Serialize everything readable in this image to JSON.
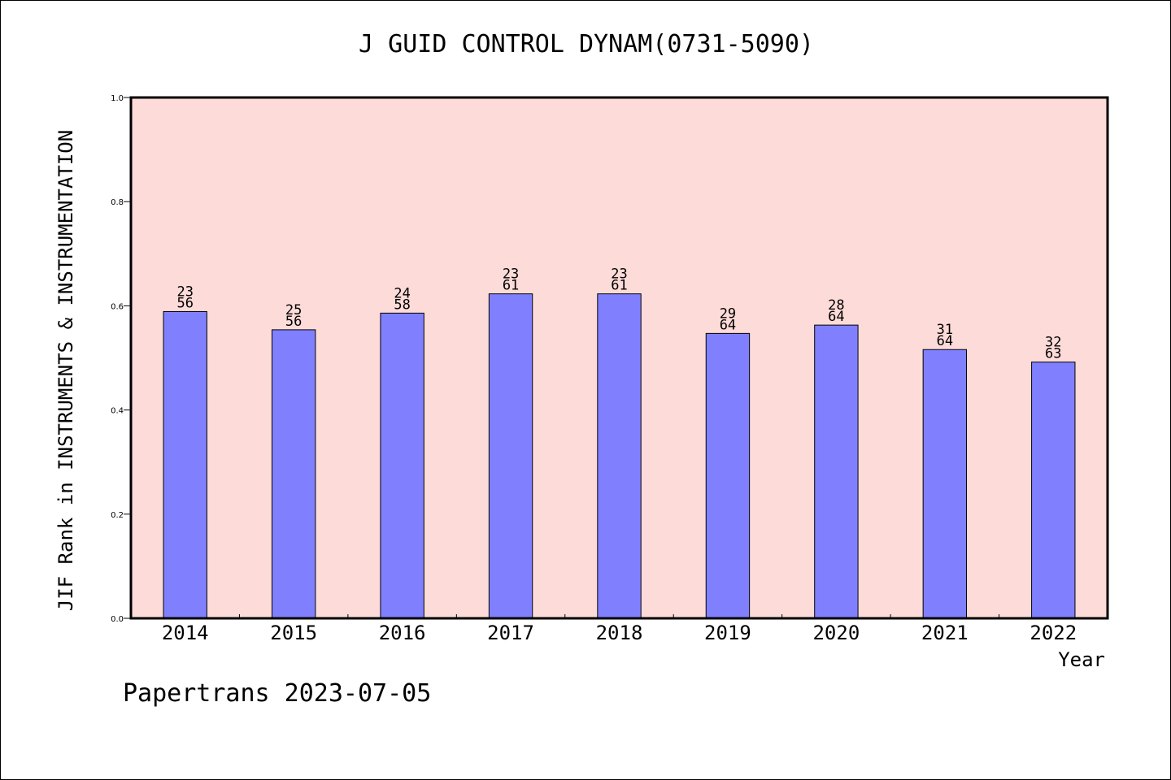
{
  "chart_data": {
    "type": "bar",
    "title": "J GUID CONTROL DYNAM(0731-5090)",
    "xlabel": "Year",
    "ylabel": "JIF Rank in INSTRUMENTS & INSTRUMENTATION",
    "categories": [
      "2014",
      "2015",
      "2016",
      "2017",
      "2018",
      "2019",
      "2020",
      "2021",
      "2022"
    ],
    "values": [
      0.589,
      0.554,
      0.586,
      0.623,
      0.623,
      0.547,
      0.563,
      0.516,
      0.492
    ],
    "ranks": [
      "23",
      "25",
      "24",
      "23",
      "23",
      "29",
      "28",
      "31",
      "32"
    ],
    "totals": [
      "56",
      "56",
      "58",
      "61",
      "61",
      "64",
      "64",
      "64",
      "63"
    ],
    "ylim": [
      0,
      1.0
    ],
    "yticks": [
      "0.0",
      "0.2",
      "0.4",
      "0.6",
      "0.8",
      "1.0"
    ],
    "grid": false,
    "bar_color": "#8080ff",
    "plot_background": "#fddbd8"
  },
  "footer": "Papertrans 2023-07-05"
}
